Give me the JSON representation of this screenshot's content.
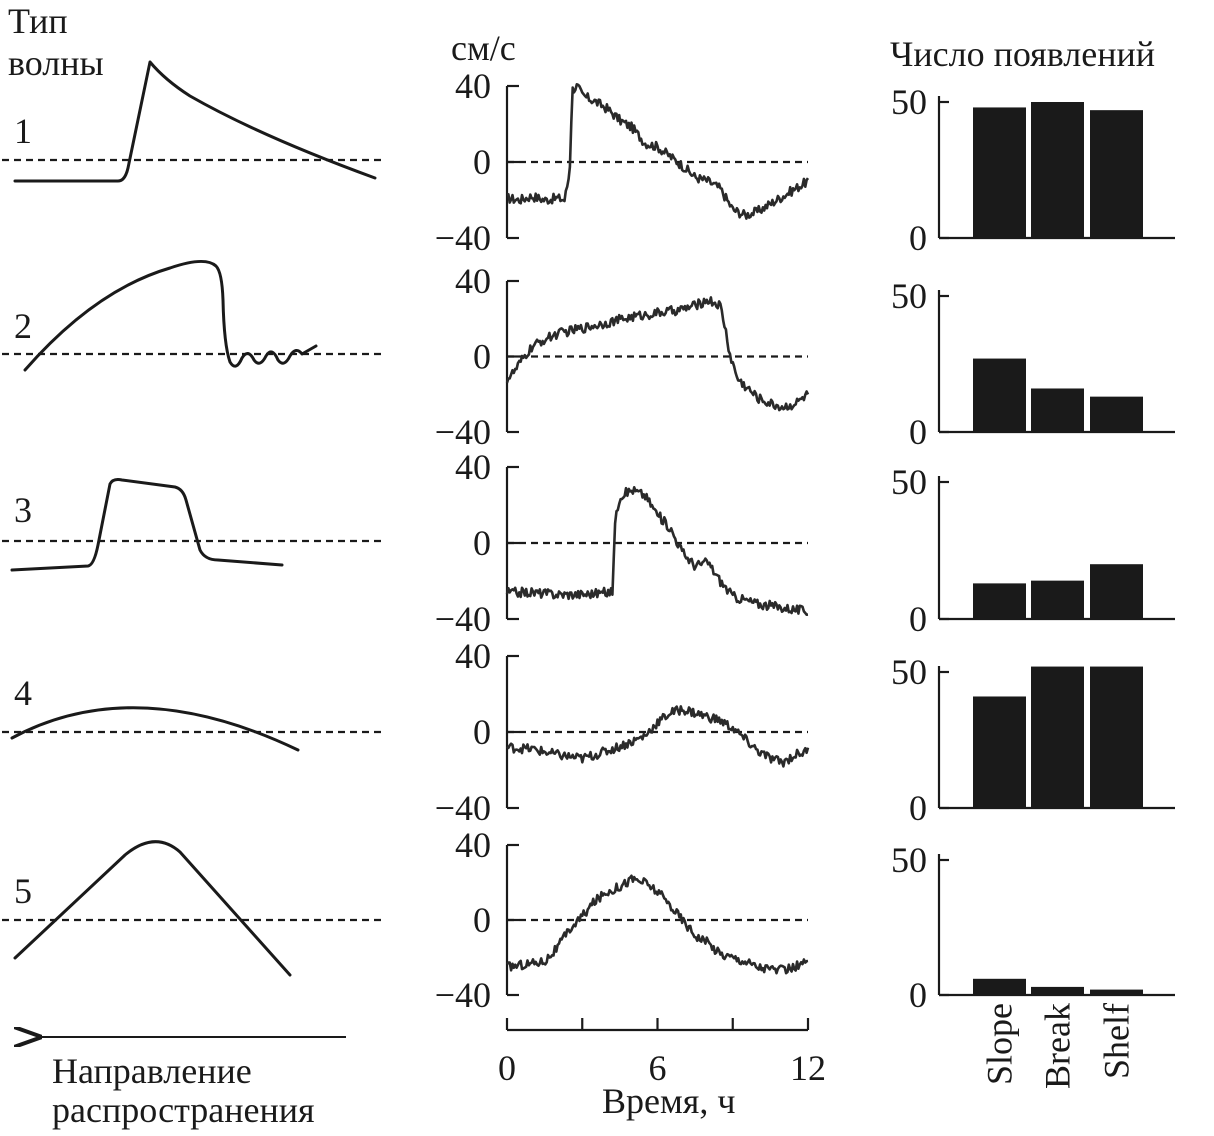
{
  "left_panel": {
    "title_line1": "Тип",
    "title_line2": "волны",
    "wave_labels": [
      "1",
      "2",
      "3",
      "4",
      "5"
    ],
    "direction_line1": "Направление",
    "direction_line2": "распространения"
  },
  "middle_panel": {
    "unit": "см/с",
    "xlabel": "Время, ч"
  },
  "right_panel": {
    "title": "Число появлений"
  },
  "chart_data": [
    {
      "type": "line",
      "title": "",
      "ylabel": "см/с",
      "xlabel": "Время, ч",
      "xlim": [
        0,
        12
      ],
      "ylim": [
        -40,
        40
      ],
      "xticks": [
        "0",
        "6",
        "12"
      ],
      "yticks": [
        "40",
        "0",
        "−40"
      ],
      "series": [
        {
          "x": [
            0,
            0.5,
            1,
            1.5,
            2,
            2.3,
            2.5,
            2.6,
            2.8,
            3,
            3.5,
            4,
            4.5,
            5,
            5.5,
            6,
            6.5,
            7,
            7.5,
            8,
            8.5,
            9,
            9.5,
            10,
            10.5,
            11,
            11.5,
            12
          ],
          "y": [
            -19,
            -20,
            -18,
            -20,
            -19,
            -20,
            -5,
            38,
            40,
            35,
            32,
            28,
            22,
            18,
            10,
            8,
            3,
            -2,
            -8,
            -10,
            -14,
            -25,
            -28,
            -26,
            -22,
            -18,
            -14,
            -10
          ]
        },
        {
          "x": [
            0,
            0.3,
            0.6,
            1,
            1.5,
            2,
            3,
            4,
            5,
            6,
            7,
            7.5,
            8,
            8.5,
            8.7,
            8.9,
            9.2,
            10,
            10.5,
            11,
            11.5,
            12
          ],
          "y": [
            -12,
            -8,
            -2,
            5,
            9,
            12,
            15,
            18,
            21,
            23,
            25,
            27,
            30,
            27,
            15,
            0,
            -12,
            -22,
            -25,
            -27,
            -25,
            -20
          ]
        },
        {
          "x": [
            0,
            1,
            2,
            3,
            4,
            4.2,
            4.3,
            4.5,
            5,
            5.5,
            6,
            6.5,
            7,
            7.5,
            8,
            8.5,
            9,
            10,
            11,
            12
          ],
          "y": [
            -26,
            -26,
            -27,
            -27,
            -26,
            -26,
            10,
            25,
            28,
            25,
            15,
            8,
            -5,
            -12,
            -10,
            -20,
            -28,
            -32,
            -34,
            -36
          ]
        },
        {
          "x": [
            0,
            1,
            2,
            3,
            4,
            5,
            5.5,
            6,
            6.5,
            7,
            7.5,
            8,
            8.5,
            9,
            9.5,
            10,
            10.5,
            11,
            11.5,
            12
          ],
          "y": [
            -8,
            -9,
            -12,
            -14,
            -10,
            -5,
            -2,
            5,
            10,
            12,
            10,
            8,
            6,
            2,
            -4,
            -10,
            -14,
            -16,
            -12,
            -10
          ]
        },
        {
          "x": [
            0,
            0.5,
            1,
            1.5,
            2,
            2.5,
            3,
            3.5,
            4,
            4.5,
            5,
            5.5,
            6,
            6.5,
            7,
            7.5,
            8,
            8.5,
            9,
            9.5,
            10,
            10.5,
            11,
            11.5,
            12
          ],
          "y": [
            -25,
            -24,
            -23,
            -22,
            -15,
            -5,
            2,
            10,
            15,
            18,
            22,
            20,
            15,
            8,
            0,
            -8,
            -12,
            -18,
            -20,
            -22,
            -25,
            -26,
            -27,
            -25,
            -22
          ]
        }
      ]
    },
    {
      "type": "bar",
      "title": "Число появлений",
      "categories": [
        "Slope",
        "Break",
        "Shelf"
      ],
      "ylim": [
        0,
        50
      ],
      "yticks": [
        "50",
        "0"
      ],
      "series": [
        {
          "name": "",
          "values": [
            48,
            50,
            47
          ]
        },
        {
          "name": "",
          "values": [
            27,
            16,
            13
          ]
        },
        {
          "name": "",
          "values": [
            13,
            14,
            20
          ]
        },
        {
          "name": "",
          "values": [
            41,
            52,
            52
          ]
        },
        {
          "name": "",
          "values": [
            6,
            3,
            2
          ]
        }
      ]
    }
  ]
}
